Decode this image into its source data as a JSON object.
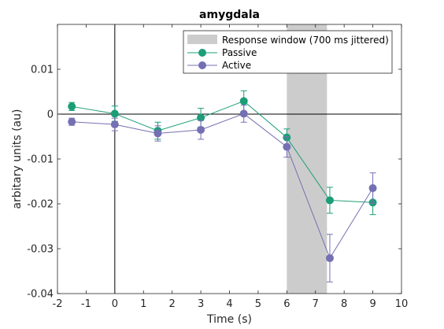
{
  "chart_data": {
    "type": "line",
    "title": "amygdala",
    "xlabel": "Time (s)",
    "ylabel": "arbitary units (au)",
    "xlim": [
      -2,
      10
    ],
    "ylim": [
      -0.04,
      0.02
    ],
    "xticks": [
      -2,
      -1,
      0,
      1,
      2,
      3,
      4,
      5,
      6,
      7,
      8,
      9,
      10
    ],
    "xtick_labels": [
      "-2",
      "-1",
      "0",
      "1",
      "2",
      "3",
      "4",
      "5",
      "6",
      "7",
      "8",
      "9",
      "10"
    ],
    "yticks": [
      -0.04,
      -0.03,
      -0.02,
      -0.01,
      0,
      0.01
    ],
    "ytick_labels": [
      "-0.04",
      "-0.03",
      "-0.02",
      "-0.01",
      "0",
      "0.01"
    ],
    "grid": false,
    "legend_placement": "top-right",
    "zero_lines": {
      "x": 0,
      "y": 0
    },
    "response_window": {
      "label": "Response window (700 ms jittered)",
      "x_start": 6,
      "x_end": 7.4,
      "color": "#cccccc"
    },
    "series": [
      {
        "name": "Passive",
        "color": "#1b9e77",
        "x": [
          -1.5,
          0,
          1.5,
          3,
          4.5,
          6,
          7.5,
          9
        ],
        "y": [
          0.0017,
          0.0001,
          -0.0037,
          -0.0008,
          0.0029,
          -0.0052,
          -0.0192,
          -0.0197
        ],
        "err": [
          0.0009,
          0.0017,
          0.0019,
          0.0021,
          0.0023,
          0.0019,
          0.0029,
          0.0027
        ]
      },
      {
        "name": "Active",
        "color": "#7570b3",
        "x": [
          -1.5,
          0,
          1.5,
          3,
          4.5,
          6,
          7.5,
          9
        ],
        "y": [
          -0.0017,
          -0.0023,
          -0.0043,
          -0.0035,
          0.0001,
          -0.0073,
          -0.0321,
          -0.0165
        ],
        "err": [
          0.0008,
          0.0014,
          0.0017,
          0.0021,
          0.0019,
          0.0023,
          0.0053,
          0.0034
        ]
      }
    ]
  }
}
